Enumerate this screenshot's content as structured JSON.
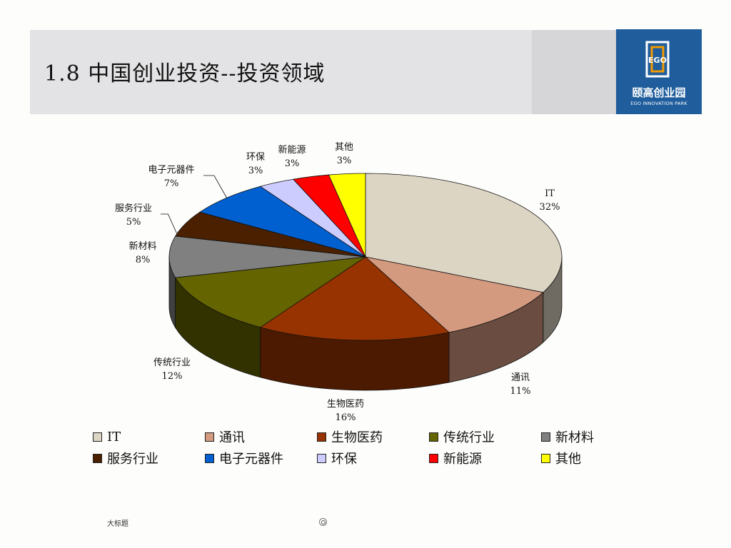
{
  "slide": {
    "title": "1.8 中国创业投资--投资领域",
    "footer_left": "大标题"
  },
  "logo": {
    "mark_text": "EGO",
    "name_cn": "颐高创业园",
    "name_en": "EGO INNOVATION PARK"
  },
  "chart_data": {
    "type": "pie",
    "style": "3d-exploded-none",
    "categories": [
      "IT",
      "通讯",
      "生物医药",
      "传统行业",
      "新材料",
      "服务行业",
      "电子元器件",
      "环保",
      "新能源",
      "其他"
    ],
    "values": [
      32,
      11,
      16,
      12,
      8,
      5,
      7,
      3,
      3,
      3
    ],
    "value_labels": [
      "32%",
      "11%",
      "16%",
      "12%",
      "8%",
      "5%",
      "7%",
      "3%",
      "3%",
      "3%"
    ],
    "colors": [
      "#ddd5c4",
      "#d49a80",
      "#973300",
      "#646400",
      "#808080",
      "#4a2000",
      "#0060d0",
      "#ccccff",
      "#ff0000",
      "#ffff00"
    ],
    "legend_position": "bottom"
  }
}
